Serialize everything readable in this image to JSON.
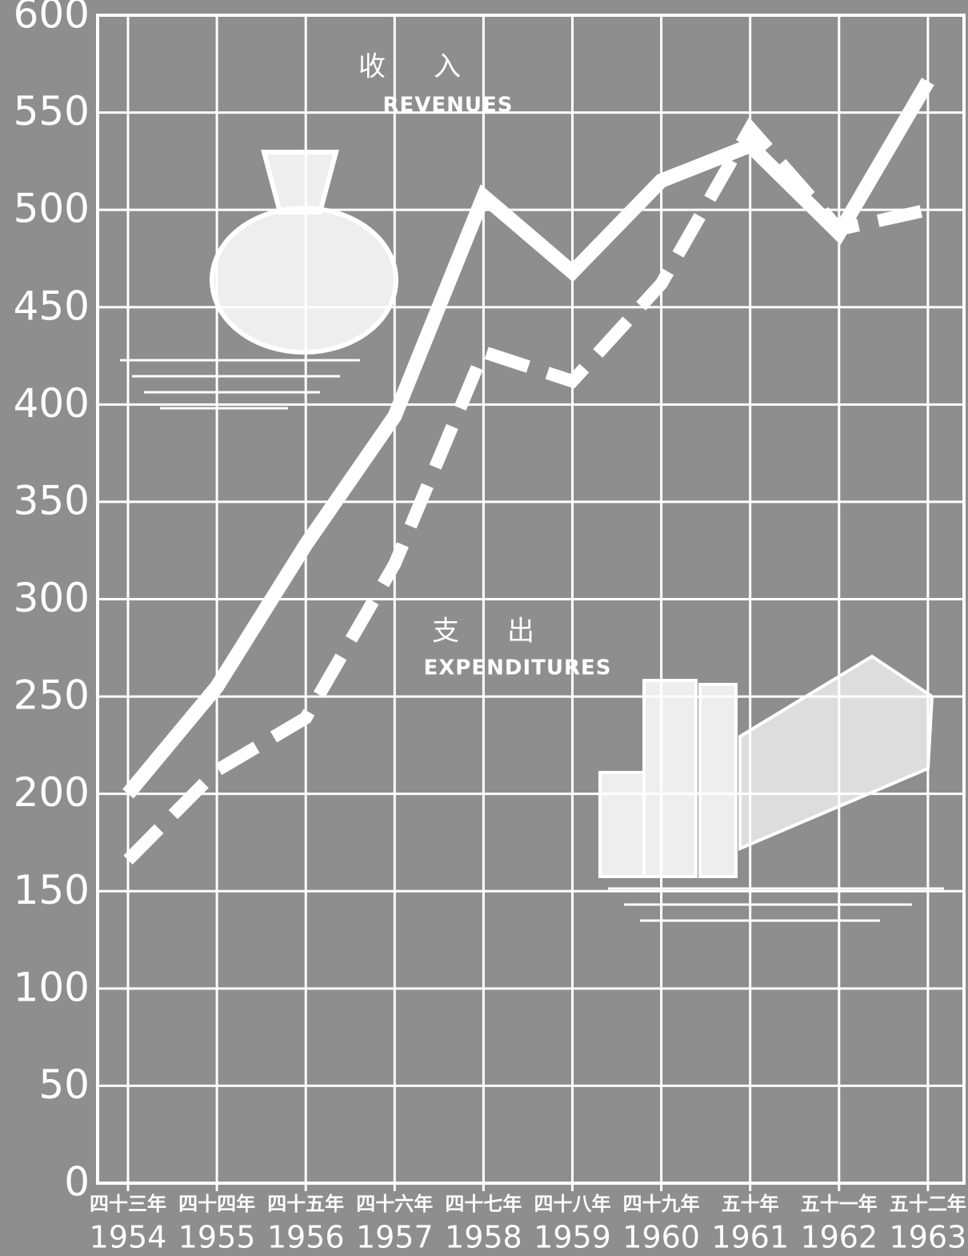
{
  "chart_data": {
    "type": "line",
    "categories": [
      "1954",
      "1955",
      "1956",
      "1957",
      "1958",
      "1959",
      "1960",
      "1961",
      "1962",
      "1963"
    ],
    "categories_zh": [
      "四十三年",
      "四十四年",
      "四十五年",
      "四十六年",
      "四十七年",
      "四十八年",
      "四十九年",
      "五十年",
      "五十一年",
      "五十二年"
    ],
    "series": [
      {
        "name": "REVENUES",
        "name_zh": "收入",
        "color": "#ffffff",
        "style": "solid",
        "values": [
          200,
          255,
          328,
          394,
          507,
          468,
          515,
          533,
          488,
          566
        ]
      },
      {
        "name": "EXPENDITURES",
        "name_zh": "支出",
        "color": "#ffffff",
        "style": "dashed",
        "values": [
          166,
          212,
          239,
          318,
          427,
          412,
          462,
          542,
          490,
          500
        ]
      }
    ],
    "ylim": [
      0,
      600
    ],
    "yticks": [
      0,
      50,
      100,
      150,
      200,
      250,
      300,
      350,
      400,
      450,
      500,
      550,
      600
    ],
    "grid": true
  }
}
